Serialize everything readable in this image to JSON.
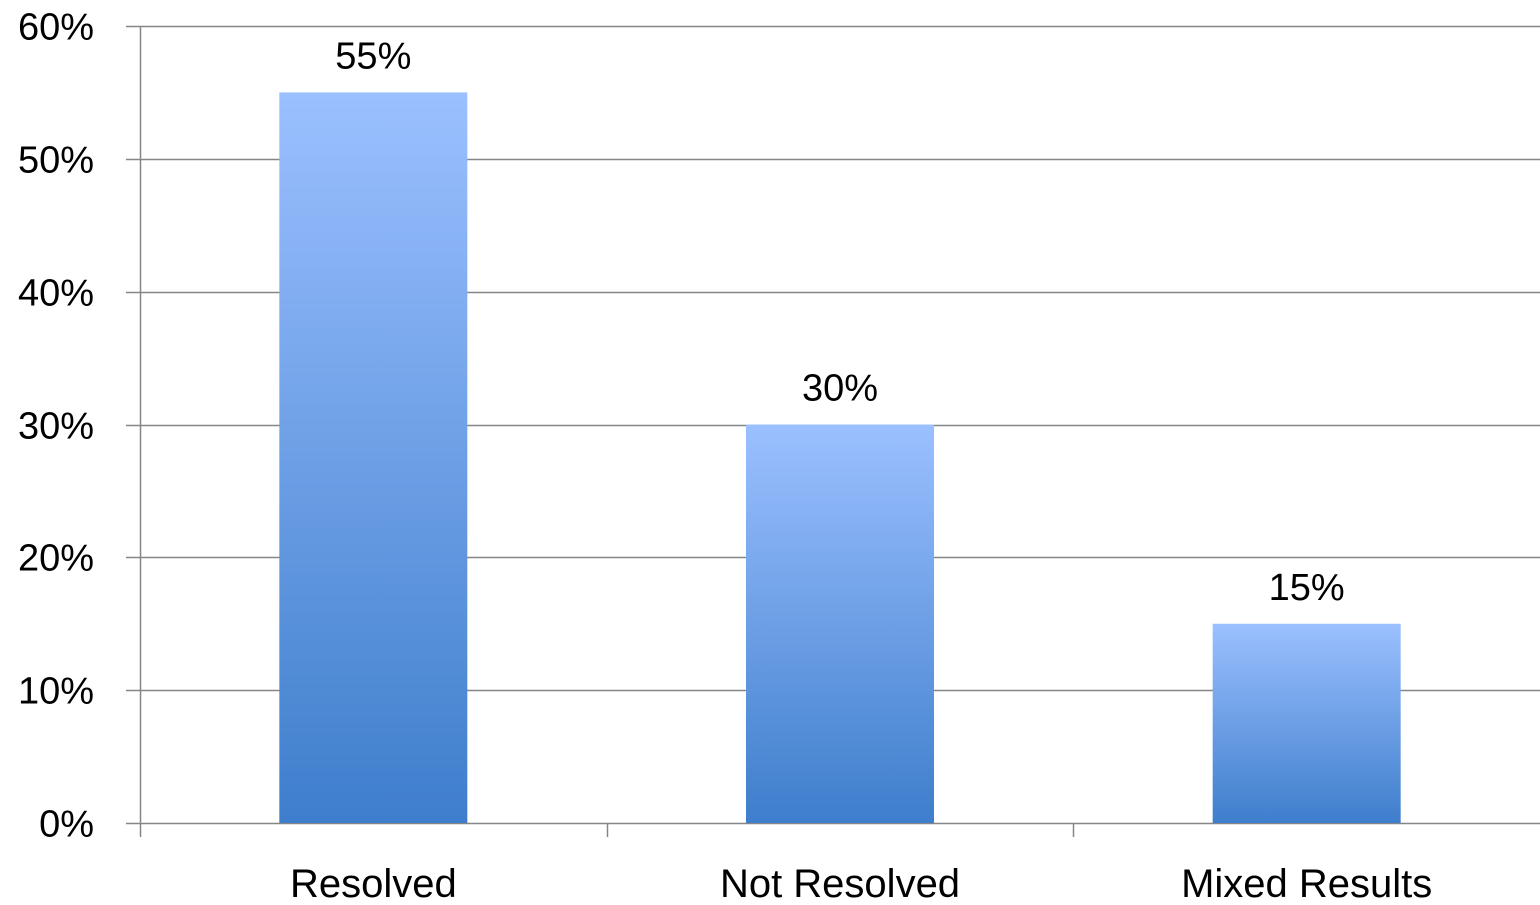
{
  "chart_data": {
    "type": "bar",
    "categories": [
      "Resolved",
      "Not Resolved",
      "Mixed Results"
    ],
    "values": [
      55,
      30,
      15
    ],
    "value_labels": [
      "55%",
      "30%",
      "15%"
    ],
    "yticks": [
      0,
      10,
      20,
      30,
      40,
      50,
      60
    ],
    "ytick_labels": [
      "0%",
      "10%",
      "20%",
      "30%",
      "40%",
      "50%",
      "60%"
    ],
    "ylim": [
      0,
      60
    ],
    "grid": true,
    "legend": "none",
    "colors": {
      "bar_top": "#9BC0FF",
      "bar_bottom": "#3E7ECC",
      "grid": "#868686",
      "axis": "#868686"
    }
  }
}
